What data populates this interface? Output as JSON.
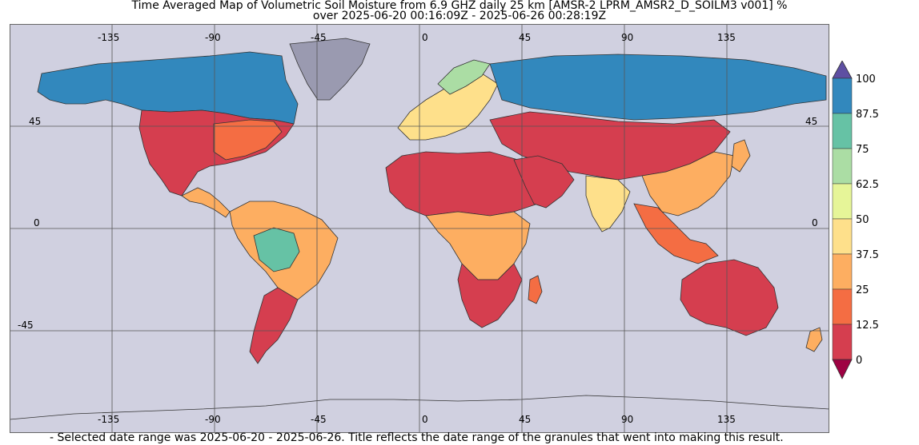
{
  "title": {
    "line1": "Time Averaged Map of Volumetric Soil Moisture from 6.9 GHZ daily 25 km [AMSR-2 LPRM_AMSR2_D_SOILM3 v001] %",
    "line2": "over 2025-06-20 00:16:09Z - 2025-06-26 00:28:19Z"
  },
  "map": {
    "projection": "equirectangular",
    "lon_range": [
      -180,
      180
    ],
    "lat_range": [
      -90,
      90
    ],
    "ocean_color": "#d0d0e0",
    "gridline_color": "#555555",
    "top_lon_labels": [
      "-135",
      "-90",
      "-45",
      "0",
      "45",
      "90",
      "135"
    ],
    "bottom_lon_labels": [
      "-135",
      "-90",
      "-45",
      "0",
      "45",
      "90",
      "135"
    ],
    "left_lat_labels": [
      "45",
      "0",
      "-45"
    ],
    "right_lat_labels": [
      "45",
      "0"
    ]
  },
  "colorbar": {
    "ticks": [
      "100",
      "87.5",
      "75",
      "62.5",
      "50",
      "37.5",
      "25",
      "12.5",
      "0"
    ],
    "colors": [
      "#3288bd",
      "#66c2a5",
      "#abdda4",
      "#e6f598",
      "#fee08b",
      "#fdae61",
      "#f46d43",
      "#d53e4f"
    ],
    "over_color": "#5e4fa2",
    "under_color": "#9e0142"
  },
  "footer": {
    "note": "- Selected date range was 2025-06-20 - 2025-06-26. Title reflects the date range of the granules that went into making this result."
  }
}
